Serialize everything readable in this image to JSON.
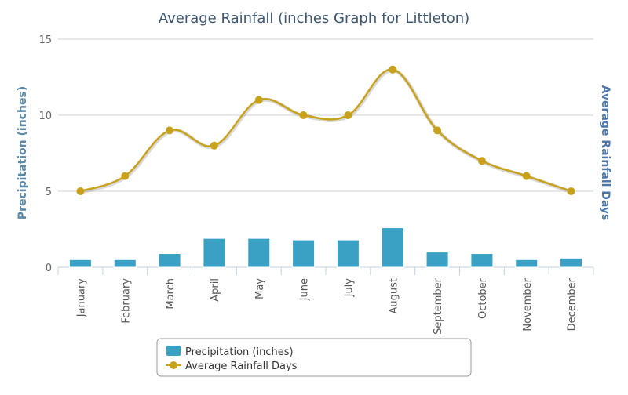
{
  "chart_data": {
    "type": "bar+line",
    "title": "Average Rainfall (inches Graph for Littleton)",
    "ylabel_left": "Precipitation (inches)",
    "ylabel_right": "Average Rainfall Days",
    "ylim": [
      0,
      15
    ],
    "yticks": [
      "0",
      "5",
      "10",
      "15"
    ],
    "grid": true,
    "legend_position": "bottom",
    "categories": [
      "January",
      "February",
      "March",
      "April",
      "May",
      "June",
      "July",
      "August",
      "September",
      "October",
      "November",
      "December"
    ],
    "series": [
      {
        "name": "Precipitation (inches)",
        "type": "bar",
        "color": "#3aa0c4",
        "values": [
          0.5,
          0.5,
          0.9,
          1.9,
          1.9,
          1.8,
          1.8,
          2.6,
          1.0,
          0.9,
          0.5,
          0.6
        ]
      },
      {
        "name": "Average Rainfall Days",
        "type": "line",
        "color": "#c9a21c",
        "values": [
          5,
          6,
          9,
          8,
          11,
          10,
          10,
          13,
          9,
          7,
          6,
          5
        ]
      }
    ]
  }
}
